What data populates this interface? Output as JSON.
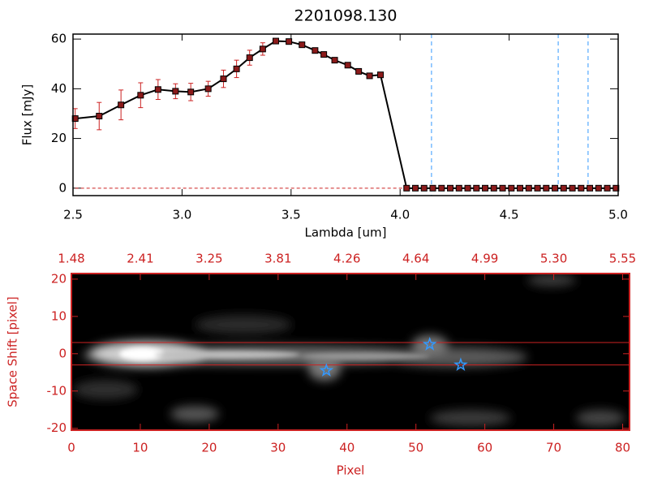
{
  "chart_data": [
    {
      "type": "line",
      "title": "2201098.130",
      "xlabel": "Lambda [um]",
      "ylabel": "Flux [mJy]",
      "x": [
        2.51,
        2.62,
        2.72,
        2.81,
        2.89,
        2.97,
        3.04,
        3.12,
        3.19,
        3.25,
        3.31,
        3.37,
        3.43,
        3.49,
        3.55,
        3.61,
        3.65,
        3.7,
        3.76,
        3.81,
        3.86,
        3.91,
        4.03,
        4.07,
        4.11,
        4.15,
        4.19,
        4.23,
        4.27,
        4.31,
        4.35,
        4.39,
        4.43,
        4.47,
        4.51,
        4.55,
        4.59,
        4.63,
        4.67,
        4.71,
        4.75,
        4.79,
        4.83,
        4.87,
        4.91,
        4.95,
        4.99
      ],
      "values": [
        28,
        29,
        33.5,
        37.4,
        39.7,
        39,
        38.7,
        40,
        44,
        48,
        52.5,
        56,
        59.2,
        59,
        57.7,
        55.4,
        53.8,
        51.5,
        49.5,
        47,
        45.2,
        45.6,
        0,
        0,
        0,
        0,
        0,
        0,
        0,
        0,
        0,
        0,
        0,
        0,
        0,
        0,
        0,
        0,
        0,
        0,
        0,
        0,
        0,
        0,
        0,
        0,
        0
      ],
      "errors": [
        4,
        5.5,
        6,
        5,
        4,
        3,
        3.5,
        3,
        3.5,
        3.5,
        3,
        2.5,
        1,
        1,
        1,
        1,
        1,
        1,
        1,
        1,
        1,
        1,
        0,
        0,
        0,
        0,
        0,
        0,
        0,
        0,
        0,
        0,
        0,
        0,
        0,
        0,
        0,
        0,
        0,
        0,
        0,
        0,
        0,
        0,
        0,
        0,
        0
      ],
      "xlim": [
        2.5,
        5.0
      ],
      "ylim": [
        -3,
        62
      ],
      "xticks": [
        2.5,
        {
          "value": 3,
          "label": "3.0"
        },
        3.5,
        {
          "value": 4,
          "label": "4.0"
        },
        4.5,
        {
          "value": 5,
          "label": "5.0"
        }
      ],
      "yticks": [
        0,
        20,
        40,
        60
      ],
      "color": "#000000",
      "marker_color": "#8b1a1a",
      "error_color": "#cc2222",
      "vlines": [
        4.144,
        4.725,
        4.862
      ],
      "vline_color": "#3399ff",
      "hline": 0,
      "hline_color": "#cc2222"
    },
    {
      "type": "image",
      "xlabel": "Pixel",
      "ylabel": "Space Shift [pixel]",
      "xlim": [
        0,
        81
      ],
      "ylim": [
        -20.5,
        21.5
      ],
      "xticks": [
        0,
        10,
        20,
        30,
        40,
        50,
        60,
        70,
        80
      ],
      "yticks": [
        -20,
        -10,
        0,
        10,
        20
      ],
      "top_xticks": [
        {
          "value": 0,
          "label": "1.48"
        },
        {
          "value": 10,
          "label": "2.41"
        },
        {
          "value": 20,
          "label": "3.25"
        },
        {
          "value": 30,
          "label": "3.81"
        },
        {
          "value": 40,
          "label": "4.26"
        },
        {
          "value": 50,
          "label": "4.64"
        },
        {
          "value": 60,
          "label": "4.99"
        },
        {
          "value": 70,
          "label": "5.30"
        },
        {
          "value": 80,
          "label": "5.55"
        }
      ],
      "markers": {
        "x": [
          37,
          52,
          56.5
        ],
        "y": [
          -4.5,
          2.5,
          -3
        ]
      },
      "hlines": [
        3,
        -3
      ],
      "axis_color": "#cc2222",
      "marker_color": "#3399ff"
    }
  ]
}
